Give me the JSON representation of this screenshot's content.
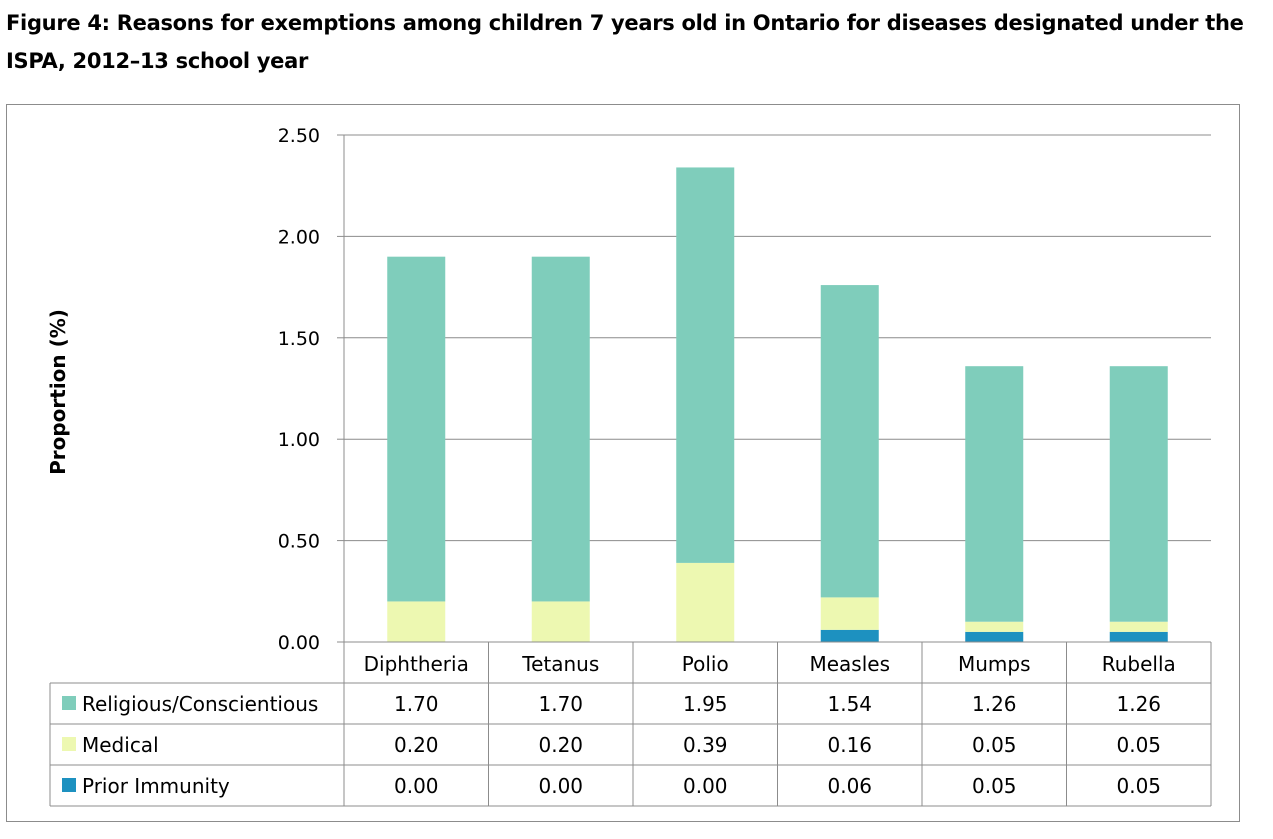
{
  "title": "Figure 4: Reasons for exemptions among children 7 years old in Ontario for diseases designated under the ISPA, 2012–13 school year",
  "chart_data": {
    "type": "bar",
    "stacked": true,
    "categories": [
      "Diphtheria",
      "Tetanus",
      "Polio",
      "Measles",
      "Mumps",
      "Rubella"
    ],
    "series": [
      {
        "name": "Religious/Conscientious",
        "color": "#7fcdbb",
        "values": [
          1.7,
          1.7,
          1.95,
          1.54,
          1.26,
          1.26
        ],
        "labels": [
          "1.70",
          "1.70",
          "1.95",
          "1.54",
          "1.26",
          "1.26"
        ]
      },
      {
        "name": "Medical",
        "color": "#edf8b1",
        "values": [
          0.2,
          0.2,
          0.39,
          0.16,
          0.05,
          0.05
        ],
        "labels": [
          "0.20",
          "0.20",
          "0.39",
          "0.16",
          "0.05",
          "0.05"
        ]
      },
      {
        "name": "Prior Immunity",
        "color": "#1d91c0",
        "values": [
          0.0,
          0.0,
          0.0,
          0.06,
          0.05,
          0.05
        ],
        "labels": [
          "0.00",
          "0.00",
          "0.00",
          "0.06",
          "0.05",
          "0.05"
        ]
      }
    ],
    "stack_order": [
      "Prior Immunity",
      "Medical",
      "Religious/Conscientious"
    ],
    "ylabel": "Proportion (%)",
    "xlabel": "",
    "ylim": [
      0,
      2.5
    ],
    "yticks": [
      "0.00",
      "0.50",
      "1.00",
      "1.50",
      "2.00",
      "2.50"
    ],
    "grid": true,
    "legend": "data-table"
  }
}
